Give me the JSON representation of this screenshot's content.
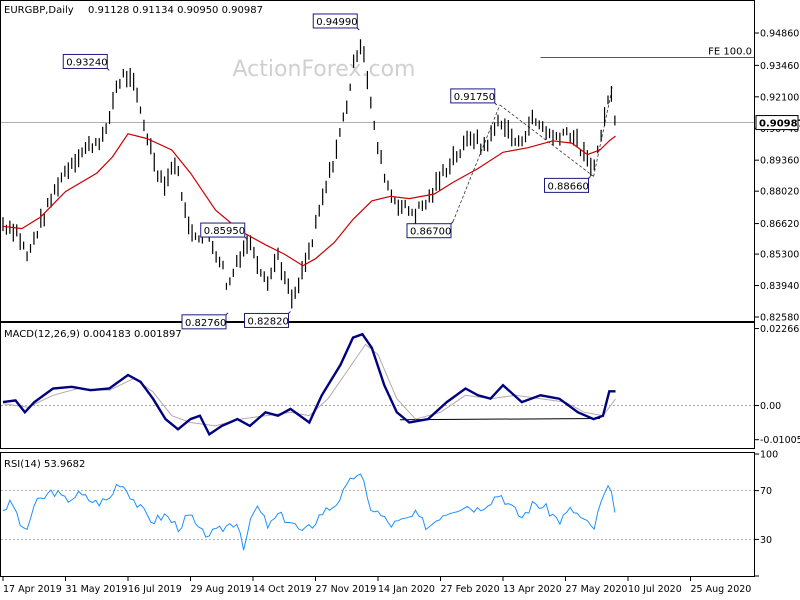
{
  "chart_data": {
    "type": "ohlc",
    "symbol": "EURGBP,Daily",
    "ohlc_header": "0.91128 0.91134 0.90950 0.90987",
    "watermark": "ActionForex.com",
    "x_labels": [
      "17 Apr 2019",
      "31 May 2019",
      "16 Jul 2019",
      "29 Aug 2019",
      "14 Oct 2019",
      "27 Nov 2019",
      "14 Jan 2020",
      "27 Feb 2020",
      "13 Apr 2020",
      "27 May 2020",
      "10 Jul 2020",
      "25 Aug 2020"
    ],
    "main_panel": {
      "ylim": [
        0.8245,
        0.962
      ],
      "y_ticks": [
        "0.94860",
        "0.93460",
        "0.92100",
        "0.90740",
        "0.89360",
        "0.88020",
        "0.86620",
        "0.85300",
        "0.83940",
        "0.82580"
      ],
      "current_price": "0.90987",
      "annotations": [
        {
          "text": "0.93240",
          "x_index": 1.7
        },
        {
          "text": "0.94990",
          "x_index": 5.7
        },
        {
          "text": "0.82760",
          "x_index": 3.6
        },
        {
          "text": "0.85950",
          "x_index": 3.9
        },
        {
          "text": "0.82820",
          "x_index": 4.6
        },
        {
          "text": "0.91750",
          "x_index": 7.9
        },
        {
          "text": "0.86700",
          "x_index": 7.2
        },
        {
          "text": "0.88660",
          "x_index": 9.4
        }
      ],
      "fe_label": "FE 100.0",
      "fe_level": 0.938,
      "close_path": [
        [
          0,
          0.866
        ],
        [
          0.2,
          0.864
        ],
        [
          0.3,
          0.858
        ],
        [
          0.4,
          0.851
        ],
        [
          0.5,
          0.86
        ],
        [
          0.7,
          0.872
        ],
        [
          0.9,
          0.885
        ],
        [
          1.1,
          0.893
        ],
        [
          1.3,
          0.898
        ],
        [
          1.5,
          0.902
        ],
        [
          1.65,
          0.905
        ],
        [
          1.8,
          0.925
        ],
        [
          1.95,
          0.931
        ],
        [
          2.1,
          0.925
        ],
        [
          2.2,
          0.915
        ],
        [
          2.35,
          0.9
        ],
        [
          2.5,
          0.887
        ],
        [
          2.6,
          0.884
        ],
        [
          2.75,
          0.893
        ],
        [
          2.85,
          0.882
        ],
        [
          2.95,
          0.865
        ],
        [
          3.1,
          0.862
        ],
        [
          3.3,
          0.86
        ],
        [
          3.5,
          0.849
        ],
        [
          3.6,
          0.838
        ],
        [
          3.75,
          0.851
        ],
        [
          3.9,
          0.858
        ],
        [
          4.0,
          0.856
        ],
        [
          4.1,
          0.848
        ],
        [
          4.25,
          0.842
        ],
        [
          4.4,
          0.853
        ],
        [
          4.55,
          0.838
        ],
        [
          4.65,
          0.832
        ],
        [
          4.8,
          0.846
        ],
        [
          4.95,
          0.858
        ],
        [
          5.05,
          0.87
        ],
        [
          5.2,
          0.885
        ],
        [
          5.35,
          0.9
        ],
        [
          5.5,
          0.918
        ],
        [
          5.65,
          0.94
        ],
        [
          5.75,
          0.946
        ],
        [
          5.85,
          0.925
        ],
        [
          5.95,
          0.905
        ],
        [
          6.05,
          0.893
        ],
        [
          6.2,
          0.879
        ],
        [
          6.4,
          0.873
        ],
        [
          6.6,
          0.871
        ],
        [
          6.8,
          0.876
        ],
        [
          7.0,
          0.886
        ],
        [
          7.2,
          0.895
        ],
        [
          7.35,
          0.898
        ],
        [
          7.5,
          0.905
        ],
        [
          7.65,
          0.899
        ],
        [
          7.8,
          0.903
        ],
        [
          7.95,
          0.912
        ],
        [
          8.1,
          0.905
        ],
        [
          8.25,
          0.9
        ],
        [
          8.45,
          0.911
        ],
        [
          8.65,
          0.908
        ],
        [
          8.8,
          0.903
        ],
        [
          8.95,
          0.906
        ],
        [
          9.1,
          0.905
        ],
        [
          9.25,
          0.898
        ],
        [
          9.4,
          0.89
        ],
        [
          9.55,
          0.9
        ],
        [
          9.65,
          0.918
        ],
        [
          9.75,
          0.922
        ],
        [
          9.8,
          0.911
        ]
      ],
      "ma_path": [
        [
          0,
          0.865
        ],
        [
          0.3,
          0.864
        ],
        [
          0.6,
          0.869
        ],
        [
          1.0,
          0.88
        ],
        [
          1.5,
          0.888
        ],
        [
          1.75,
          0.895
        ],
        [
          2.0,
          0.905
        ],
        [
          2.3,
          0.903
        ],
        [
          2.7,
          0.898
        ],
        [
          3.0,
          0.888
        ],
        [
          3.4,
          0.872
        ],
        [
          3.8,
          0.863
        ],
        [
          4.2,
          0.857
        ],
        [
          4.5,
          0.853
        ],
        [
          4.8,
          0.848
        ],
        [
          5.0,
          0.851
        ],
        [
          5.3,
          0.858
        ],
        [
          5.6,
          0.868
        ],
        [
          5.9,
          0.876
        ],
        [
          6.2,
          0.878
        ],
        [
          6.5,
          0.877
        ],
        [
          6.9,
          0.879
        ],
        [
          7.2,
          0.884
        ],
        [
          7.6,
          0.89
        ],
        [
          8.0,
          0.897
        ],
        [
          8.4,
          0.899
        ],
        [
          8.8,
          0.902
        ],
        [
          9.1,
          0.901
        ],
        [
          9.35,
          0.896
        ],
        [
          9.55,
          0.898
        ],
        [
          9.7,
          0.902
        ],
        [
          9.8,
          0.904
        ]
      ]
    },
    "macd_panel": {
      "label": "MACD(12,26,9) 0.004183 0.001897",
      "ylim": [
        -0.0125,
        0.024
      ],
      "y_ticks": [
        "0.022662",
        "0.00",
        "-0.010052"
      ],
      "macd_path": [
        [
          0,
          0.001
        ],
        [
          0.2,
          0.0015
        ],
        [
          0.35,
          -0.002
        ],
        [
          0.5,
          0.001
        ],
        [
          0.8,
          0.005
        ],
        [
          1.1,
          0.0055
        ],
        [
          1.4,
          0.0045
        ],
        [
          1.7,
          0.005
        ],
        [
          2.0,
          0.009
        ],
        [
          2.2,
          0.007
        ],
        [
          2.4,
          0.002
        ],
        [
          2.6,
          -0.004
        ],
        [
          2.8,
          -0.007
        ],
        [
          3.0,
          -0.004
        ],
        [
          3.15,
          -0.003
        ],
        [
          3.3,
          -0.0085
        ],
        [
          3.5,
          -0.006
        ],
        [
          3.75,
          -0.004
        ],
        [
          3.95,
          -0.006
        ],
        [
          4.2,
          -0.002
        ],
        [
          4.4,
          -0.003
        ],
        [
          4.6,
          -0.001
        ],
        [
          4.9,
          -0.005
        ],
        [
          5.1,
          0.003
        ],
        [
          5.4,
          0.012
        ],
        [
          5.6,
          0.02
        ],
        [
          5.75,
          0.021
        ],
        [
          5.9,
          0.017
        ],
        [
          6.1,
          0.006
        ],
        [
          6.3,
          -0.002
        ],
        [
          6.5,
          -0.005
        ],
        [
          6.8,
          -0.004
        ],
        [
          7.1,
          0.001
        ],
        [
          7.4,
          0.005
        ],
        [
          7.6,
          0.003
        ],
        [
          7.8,
          0.002
        ],
        [
          8.0,
          0.006
        ],
        [
          8.3,
          0.001
        ],
        [
          8.6,
          0.003
        ],
        [
          8.9,
          0.002
        ],
        [
          9.2,
          -0.002
        ],
        [
          9.45,
          -0.004
        ],
        [
          9.6,
          -0.003
        ],
        [
          9.7,
          0.0042
        ],
        [
          9.8,
          0.0042
        ]
      ],
      "signal_path": [
        [
          0,
          0.0005
        ],
        [
          0.4,
          -0.0005
        ],
        [
          0.8,
          0.003
        ],
        [
          1.2,
          0.005
        ],
        [
          1.7,
          0.0045
        ],
        [
          2.1,
          0.008
        ],
        [
          2.4,
          0.004
        ],
        [
          2.7,
          -0.003
        ],
        [
          3.0,
          -0.005
        ],
        [
          3.4,
          -0.006
        ],
        [
          3.8,
          -0.004
        ],
        [
          4.2,
          -0.003
        ],
        [
          4.6,
          -0.002
        ],
        [
          4.9,
          -0.003
        ],
        [
          5.2,
          0.002
        ],
        [
          5.5,
          0.01
        ],
        [
          5.8,
          0.018
        ],
        [
          6.0,
          0.015
        ],
        [
          6.3,
          0.002
        ],
        [
          6.6,
          -0.004
        ],
        [
          7.0,
          -0.002
        ],
        [
          7.4,
          0.003
        ],
        [
          7.8,
          0.002
        ],
        [
          8.2,
          0.003
        ],
        [
          8.6,
          0.002
        ],
        [
          9.0,
          0.001
        ],
        [
          9.3,
          -0.002
        ],
        [
          9.6,
          -0.003
        ],
        [
          9.8,
          0.0019
        ]
      ],
      "support_line": [
        [
          6.35,
          -0.0042
        ],
        [
          9.55,
          -0.0038
        ]
      ]
    },
    "rsi_panel": {
      "label": "RSI(14) 53.9682",
      "ylim": [
        0,
        100
      ],
      "y_ticks": [
        100,
        70,
        30,
        0
      ],
      "rsi_path": [
        [
          0,
          55
        ],
        [
          0.15,
          60
        ],
        [
          0.3,
          40
        ],
        [
          0.35,
          33
        ],
        [
          0.5,
          58
        ],
        [
          0.8,
          70
        ],
        [
          1.0,
          62
        ],
        [
          1.2,
          67
        ],
        [
          1.5,
          60
        ],
        [
          1.7,
          63
        ],
        [
          1.85,
          78
        ],
        [
          1.95,
          73
        ],
        [
          2.2,
          55
        ],
        [
          2.4,
          45
        ],
        [
          2.6,
          50
        ],
        [
          2.8,
          40
        ],
        [
          3.0,
          50
        ],
        [
          3.15,
          35
        ],
        [
          3.4,
          35
        ],
        [
          3.6,
          42
        ],
        [
          3.75,
          45
        ],
        [
          3.85,
          25
        ],
        [
          4.05,
          58
        ],
        [
          4.25,
          40
        ],
        [
          4.4,
          50
        ],
        [
          4.6,
          45
        ],
        [
          4.8,
          35
        ],
        [
          4.95,
          42
        ],
        [
          5.1,
          52
        ],
        [
          5.3,
          58
        ],
        [
          5.5,
          72
        ],
        [
          5.65,
          85
        ],
        [
          5.75,
          80
        ],
        [
          5.85,
          58
        ],
        [
          6.0,
          52
        ],
        [
          6.2,
          42
        ],
        [
          6.4,
          45
        ],
        [
          6.6,
          50
        ],
        [
          6.8,
          40
        ],
        [
          7.0,
          50
        ],
        [
          7.2,
          55
        ],
        [
          7.4,
          58
        ],
        [
          7.6,
          55
        ],
        [
          7.8,
          62
        ],
        [
          7.95,
          68
        ],
        [
          8.1,
          58
        ],
        [
          8.3,
          48
        ],
        [
          8.5,
          60
        ],
        [
          8.7,
          55
        ],
        [
          8.9,
          45
        ],
        [
          9.1,
          55
        ],
        [
          9.3,
          45
        ],
        [
          9.45,
          38
        ],
        [
          9.6,
          65
        ],
        [
          9.7,
          72
        ],
        [
          9.8,
          54
        ]
      ]
    }
  }
}
